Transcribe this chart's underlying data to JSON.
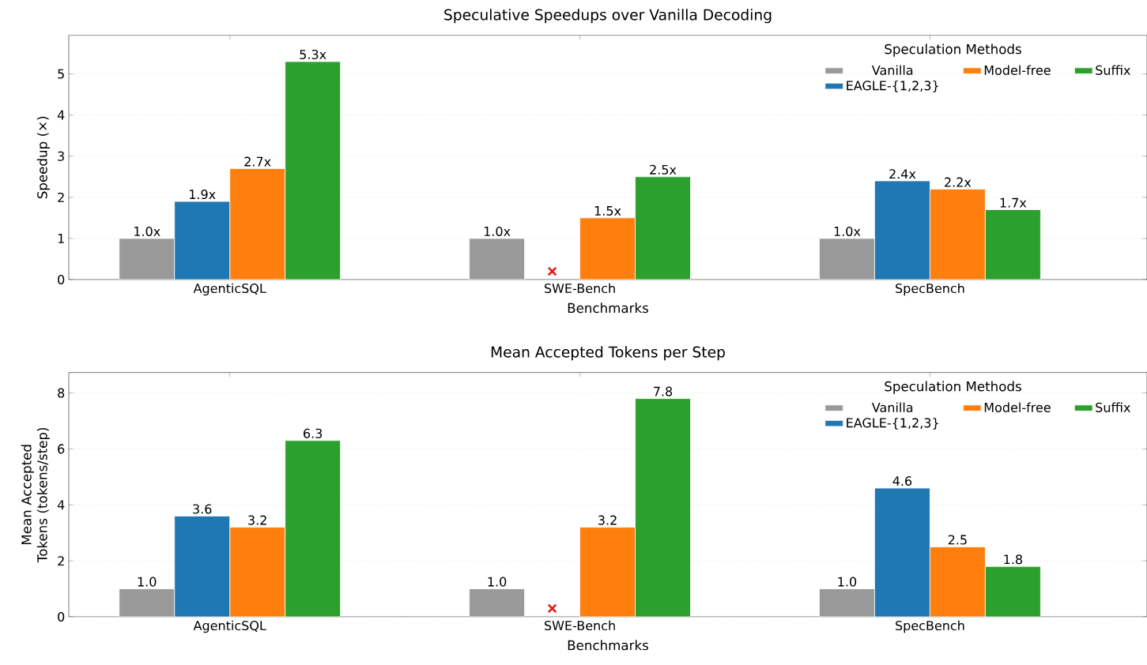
{
  "chart_data": [
    {
      "type": "bar",
      "title": "Speculative Speedups over Vanilla Decoding",
      "xlabel": "Benchmarks",
      "ylabel": "Speedup (×)",
      "legend_title": "Speculation Methods",
      "legend": "top right",
      "grid": "y",
      "categories": [
        "AgenticSQL",
        "SWE-Bench",
        "SpecBench"
      ],
      "ylim": [
        0,
        5.94
      ],
      "yticks": [
        0,
        1,
        2,
        3,
        4,
        5
      ],
      "series": [
        {
          "name": "Vanilla",
          "color": "#999999",
          "values": [
            1.0,
            1.0,
            1.0
          ],
          "value_labels": [
            "1.0x",
            "1.0x",
            "1.0x"
          ]
        },
        {
          "name": "EAGLE-{1,2,3}",
          "color": "#1f77b4",
          "values": [
            1.9,
            null,
            2.4
          ],
          "value_labels": [
            "1.9x",
            null,
            "2.4x"
          ]
        },
        {
          "name": "Model-free",
          "color": "#ff7f0e",
          "values": [
            2.7,
            1.5,
            2.2
          ],
          "value_labels": [
            "2.7x",
            "1.5x",
            "2.2x"
          ]
        },
        {
          "name": "Suffix",
          "color": "#2ca02c",
          "values": [
            5.3,
            2.5,
            1.7
          ],
          "value_labels": [
            "5.3x",
            "2.5x",
            "1.7x"
          ]
        },
        {
          "type": "scatter",
          "marker": "cross",
          "color": "#e41a1c",
          "x": [
            "SWE-Bench"
          ],
          "values": [
            0.2
          ]
        }
      ]
    },
    {
      "type": "bar",
      "title": "Mean Accepted Tokens per Step",
      "xlabel": "Benchmarks",
      "ylabel": "Mean Accepted Tokens (tokens/step)",
      "legend_title": "Speculation Methods",
      "legend": "top right",
      "grid": "y",
      "categories": [
        "AgenticSQL",
        "SWE-Bench",
        "SpecBench"
      ],
      "ylim": [
        0,
        8.73
      ],
      "yticks": [
        0,
        2,
        4,
        6,
        8
      ],
      "series": [
        {
          "name": "Vanilla",
          "color": "#999999",
          "values": [
            1.0,
            1.0,
            1.0
          ],
          "value_labels": [
            "1.0",
            "1.0",
            "1.0"
          ]
        },
        {
          "name": "EAGLE-{1,2,3}",
          "color": "#1f77b4",
          "values": [
            3.6,
            null,
            4.6
          ],
          "value_labels": [
            "3.6",
            null,
            "4.6"
          ]
        },
        {
          "name": "Model-free",
          "color": "#ff7f0e",
          "values": [
            3.2,
            3.2,
            2.5
          ],
          "value_labels": [
            "3.2",
            "3.2",
            "2.5"
          ]
        },
        {
          "name": "Suffix",
          "color": "#2ca02c",
          "values": [
            6.3,
            7.8,
            1.8
          ],
          "value_labels": [
            "6.3",
            "7.8",
            "1.8"
          ]
        },
        {
          "type": "scatter",
          "marker": "cross",
          "color": "#e41a1c",
          "x": [
            "SWE-Bench"
          ],
          "values": [
            0.3
          ]
        }
      ]
    }
  ]
}
